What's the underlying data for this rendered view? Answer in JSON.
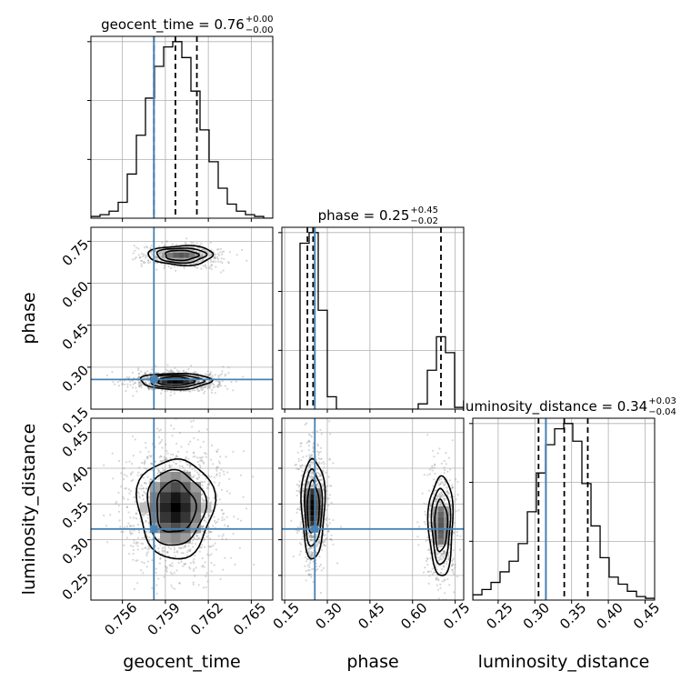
{
  "chart_data": {
    "type": "corner",
    "parameters": [
      "geocent_time",
      "phase",
      "luminosity_distance"
    ],
    "truths": {
      "geocent_time": 0.7582,
      "phase": 0.256,
      "luminosity_distance": 0.315
    },
    "colors": {
      "truth": "#4682b4",
      "line": "#000000",
      "grid": "#b0b0b0",
      "scatter": "#8c8c8c"
    },
    "diagonal": [
      {
        "parameter": "geocent_time",
        "title": "geocent_time = 0.76",
        "title_main": "geocent_time = 0.76",
        "title_sup": "+0.00",
        "title_sub": "−0.00",
        "xlim": [
          0.7538,
          0.7665
        ],
        "median": 0.7597,
        "quantiles": [
          0.7582,
          0.7597,
          0.7612
        ],
        "hist_edges": [
          0.7538,
          0.754435,
          0.75507,
          0.755705,
          0.75634,
          0.756975,
          0.75761,
          0.758245,
          0.75888,
          0.759515,
          0.76015,
          0.760785,
          0.76142,
          0.762055,
          0.76269,
          0.763325,
          0.76396,
          0.764595,
          0.76523,
          0.765865,
          0.7665
        ],
        "hist_counts": [
          0.01,
          0.02,
          0.04,
          0.09,
          0.25,
          0.47,
          0.68,
          0.86,
          0.97,
          1.0,
          0.91,
          0.72,
          0.5,
          0.32,
          0.17,
          0.08,
          0.04,
          0.02,
          0.01,
          0.0
        ]
      },
      {
        "parameter": "phase",
        "title": "phase = 0.25",
        "title_main": "phase = 0.25",
        "title_sup": "+0.45",
        "title_sub": "−0.02",
        "xlim": [
          0.14,
          0.78
        ],
        "median": 0.25,
        "quantiles": [
          0.23,
          0.25,
          0.7
        ],
        "hist_edges": [
          0.14,
          0.172,
          0.204,
          0.236,
          0.268,
          0.3,
          0.332,
          0.364,
          0.396,
          0.428,
          0.46,
          0.492,
          0.524,
          0.556,
          0.588,
          0.62,
          0.652,
          0.684,
          0.716,
          0.748,
          0.78
        ],
        "hist_counts": [
          0.0,
          0.0,
          0.94,
          1.0,
          0.56,
          0.07,
          0.0,
          0.0,
          0.0,
          0.0,
          0.0,
          0.0,
          0.0,
          0.0,
          0.0,
          0.03,
          0.22,
          0.41,
          0.32,
          0.01
        ]
      },
      {
        "parameter": "luminosity_distance",
        "title": "luminosity_distance = 0.34",
        "title_main": "luminosity_distance = 0.34",
        "title_sup": "+0.03",
        "title_sub": "−0.04",
        "xlim": [
          0.2155,
          0.463
        ],
        "median": 0.34,
        "quantiles": [
          0.305,
          0.34,
          0.372
        ],
        "hist_edges": [
          0.2155,
          0.2279,
          0.2403,
          0.2526,
          0.265,
          0.2774,
          0.2898,
          0.3021,
          0.3145,
          0.3269,
          0.3393,
          0.3516,
          0.364,
          0.3764,
          0.3888,
          0.4011,
          0.4135,
          0.4259,
          0.4383,
          0.4506,
          0.463
        ],
        "hist_counts": [
          0.03,
          0.06,
          0.1,
          0.16,
          0.22,
          0.32,
          0.5,
          0.72,
          0.88,
          0.97,
          1.0,
          0.9,
          0.66,
          0.42,
          0.24,
          0.13,
          0.09,
          0.05,
          0.02,
          0.01
        ]
      }
    ],
    "off_diagonal": [
      {
        "x": "geocent_time",
        "y": "phase",
        "xlim": [
          0.7538,
          0.7665
        ],
        "ylim": [
          0.15,
          0.8
        ],
        "modes": [
          {
            "center": [
              0.7597,
              0.25
            ],
            "spread": [
              0.0012,
              0.014
            ],
            "weight": 0.6
          },
          {
            "center": [
              0.7601,
              0.7
            ],
            "spread": [
              0.0011,
              0.017
            ],
            "weight": 0.4
          }
        ]
      },
      {
        "x": "geocent_time",
        "y": "luminosity_distance",
        "xlim": [
          0.7538,
          0.7665
        ],
        "ylim": [
          0.2155,
          0.47
        ],
        "modes": [
          {
            "center": [
              0.7597,
              0.345
            ],
            "spread": [
              0.0013,
              0.034
            ],
            "weight": 1.0
          }
        ]
      },
      {
        "x": "phase",
        "y": "luminosity_distance",
        "xlim": [
          0.14,
          0.78
        ],
        "ylim": [
          0.2155,
          0.47
        ],
        "modes": [
          {
            "center": [
              0.25,
              0.345
            ],
            "spread": [
              0.02,
              0.034
            ],
            "weight": 0.6
          },
          {
            "center": [
              0.7,
              0.32
            ],
            "spread": [
              0.021,
              0.034
            ],
            "weight": 0.4
          }
        ]
      }
    ],
    "ticks": {
      "geocent_time_x": [
        "0.756",
        "0.759",
        "0.762",
        "0.765"
      ],
      "geocent_time_values": [
        0.756,
        0.759,
        0.762,
        0.765
      ],
      "phase_x": [
        "0.15",
        "0.30",
        "0.45",
        "0.60",
        "0.75"
      ],
      "phase_y": [
        "0.15",
        "0.30",
        "0.45",
        "0.60",
        "0.75"
      ],
      "phase_values": [
        0.15,
        0.3,
        0.45,
        0.6,
        0.75
      ],
      "luminosity_distance_x": [
        "0.25",
        "0.30",
        "0.35",
        "0.40",
        "0.45"
      ],
      "luminosity_distance_y": [
        "0.25",
        "0.30",
        "0.35",
        "0.40",
        "0.45"
      ],
      "luminosity_distance_values": [
        0.25,
        0.3,
        0.35,
        0.4,
        0.45
      ]
    },
    "xlabels": [
      "geocent_time",
      "phase",
      "luminosity_distance"
    ],
    "ylabels": [
      "phase",
      "luminosity_distance"
    ],
    "grid": true
  }
}
